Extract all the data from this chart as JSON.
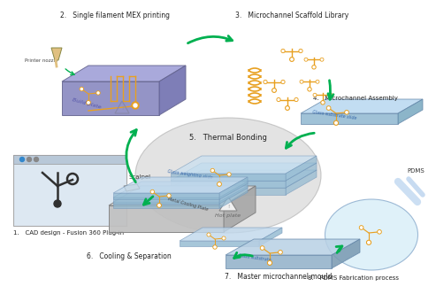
{
  "bg_color": "#ffffff",
  "arrow_color": "#00b050",
  "channel_color": "#e8a020",
  "plate_blue": "#9090c8",
  "plate_blue_dark": "#7070a8",
  "plate_blue_side": "#6060a0",
  "glass_top": "#c8dff0",
  "glass_mid": "#b8d4e8",
  "glass_side": "#90b8d0",
  "metal_top": "#d0d0d0",
  "metal_mid": "#c0c0c0",
  "metal_side": "#a0a0a0",
  "cad_bg": "#dde8f0",
  "cad_toolbar": "#c0ccd8",
  "orange": "#e8a020",
  "step2_label": "2.   Single filament MEX printing",
  "step3_label": "3.   Microchannel Scaffold Library",
  "step4_label": "4.   Microchannel Assembly",
  "step5_label": "5.   Thermal Bonding",
  "step6_label": "6.   Cooling & Separation",
  "step7_label": "7.   Master microchannel mould",
  "step8_label": "8.   PDMS Fabrication process",
  "step1_label": "1.   CAD design - Fusion 360 Plug-in",
  "printer_nozzle": "Printer nozzle",
  "build_plate": "Build plate",
  "glass_weight": "Glass weighting slide",
  "glass_sub": "Glass substrate slide",
  "metal_label": "Metal Cooling Plate",
  "glass_sub2": "Glass substrate",
  "scalpel": "Scalpel",
  "pdms": "PDMS",
  "hot_plate": "Hot plate"
}
